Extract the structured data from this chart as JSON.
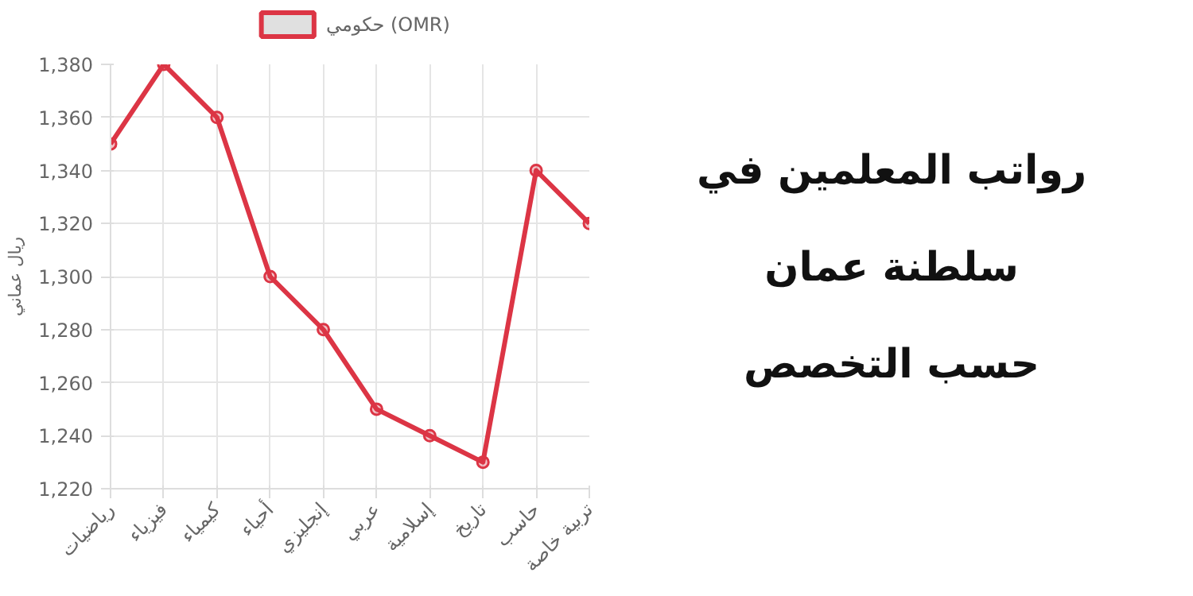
{
  "chart_data": {
    "type": "line",
    "title": "رواتب المعلمين في\nسلطنة عمان\nحسب التخصص",
    "ylabel": "ريال عماني",
    "categories": [
      "رياضيات",
      "فيزياء",
      "كيمياء",
      "أحياء",
      "إنجليزي",
      "عربي",
      "إسلامية",
      "تاريخ",
      "حاسب",
      "تربية خاصة"
    ],
    "series": [
      {
        "name": "حكومي (OMR)",
        "color": "#dc3545",
        "values": [
          1350,
          1380,
          1360,
          1300,
          1280,
          1250,
          1240,
          1230,
          1340,
          1320
        ]
      }
    ],
    "ylim": [
      1220,
      1380
    ],
    "yticks": [
      {
        "value": 1220,
        "label": "1,220"
      },
      {
        "value": 1240,
        "label": "1,240"
      },
      {
        "value": 1260,
        "label": "1,260"
      },
      {
        "value": 1280,
        "label": "1,280"
      },
      {
        "value": 1300,
        "label": "1,300"
      },
      {
        "value": 1320,
        "label": "1,320"
      },
      {
        "value": 1340,
        "label": "1,340"
      },
      {
        "value": 1360,
        "label": "1,360"
      },
      {
        "value": 1380,
        "label": "1,380"
      }
    ],
    "grid": true,
    "legend": "top",
    "marker": "circle",
    "line_style": "solid"
  }
}
